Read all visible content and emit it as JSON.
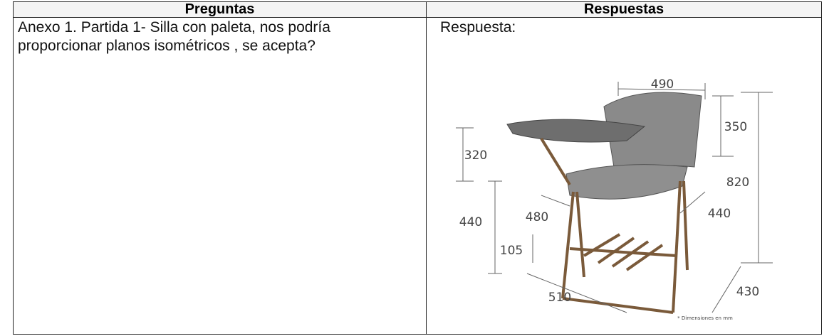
{
  "table": {
    "header": [
      "Preguntas",
      "Respuestas"
    ],
    "rows": [
      [
        "Anexo 1. Partida 1- Silla con paleta, nos podría proporcionar planos isométricos , se acepta?",
        "Respuesta:"
      ]
    ]
  },
  "figure": {
    "dimensions": [
      "490",
      "350",
      "820",
      "320",
      "440",
      "480",
      "440",
      "105",
      "510",
      "430"
    ],
    "note": "* Dimensiones en mm"
  }
}
